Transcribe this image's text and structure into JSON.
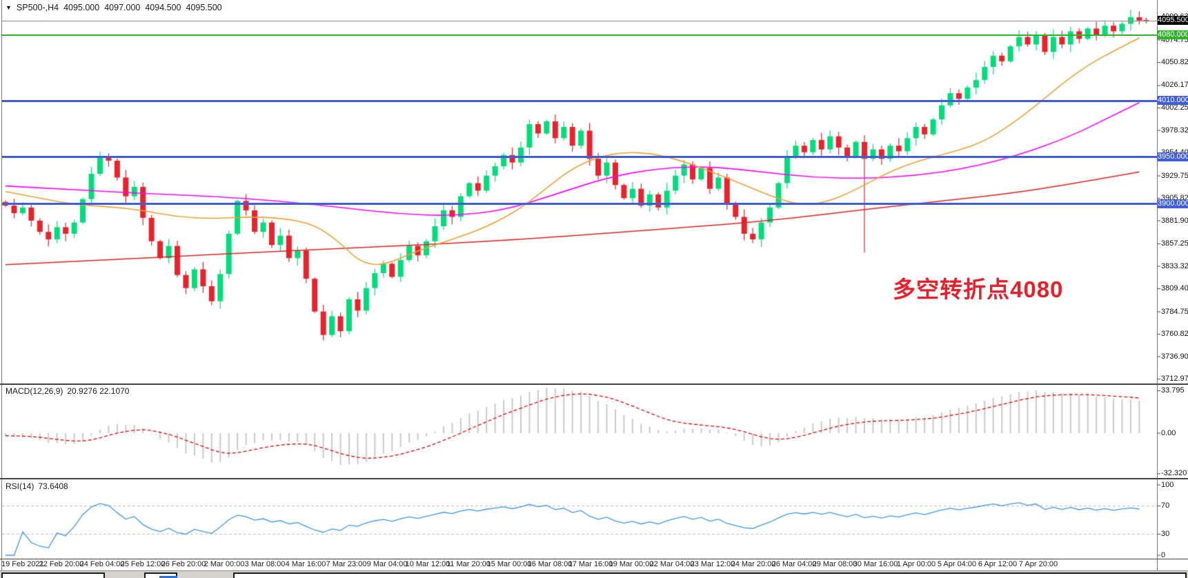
{
  "window": {
    "dropdown_icon": "▼",
    "symbol": "SP500-,H4",
    "open": "4095.000",
    "high": "4097.000",
    "low": "4094.500",
    "close": "4095.500"
  },
  "annotation": {
    "text": "多空转折点4080"
  },
  "price_axis": {
    "ticks": [
      "4099.635",
      "4074.750",
      "4050.825",
      "4026.175",
      "4002.250",
      "3978.325",
      "3954.400",
      "3929.750",
      "3905.825",
      "3881.900",
      "3857.250",
      "3833.325",
      "3809.400",
      "3784.750",
      "3760.825",
      "3736.900",
      "3712.975"
    ]
  },
  "price_lines": {
    "current": {
      "value": 4095.5,
      "label": "4095.500"
    },
    "levels": [
      {
        "value": 4080,
        "label": "4080.000",
        "type": "green"
      },
      {
        "value": 4010,
        "label": "4010.000",
        "type": "blue"
      },
      {
        "value": 3950,
        "label": "3950.000",
        "type": "blue"
      },
      {
        "value": 3900,
        "label": "3900.000",
        "type": "blue"
      }
    ]
  },
  "macd_panel": {
    "title": "MACD(12,26,9)",
    "values": "20.9276 22.1070",
    "ticks": [
      {
        "v": 33.795,
        "label": "33.795"
      },
      {
        "v": 0,
        "label": "0.00"
      },
      {
        "v": -32.3207,
        "label": "-32.3207"
      }
    ]
  },
  "rsi_panel": {
    "title": "RSI(14)",
    "value": "73.6408",
    "ticks": [
      {
        "v": 100,
        "label": "100"
      },
      {
        "v": 70,
        "label": "70"
      },
      {
        "v": 30,
        "label": "30"
      },
      {
        "v": 0,
        "label": "0"
      }
    ],
    "levels": [
      70,
      30
    ]
  },
  "time_axis": [
    "19 Feb 2021",
    "22 Feb 20:00",
    "24 Feb 04:00",
    "25 Feb 12:00",
    "26 Feb 20:00",
    "2 Mar 00:00",
    "3 Mar 08:00",
    "4 Mar 16:00",
    "7 Mar 23:00",
    "9 Mar 04:00",
    "10 Mar 12:00",
    "11 Mar 20:00",
    "15 Mar 00:00",
    "16 Mar 08:00",
    "17 Mar 16:00",
    "19 Mar 00:00",
    "22 Mar 04:00",
    "23 Mar 12:00",
    "24 Mar 20:00",
    "26 Mar 04:00",
    "29 Mar 08:00",
    "30 Mar 16:00",
    "1 Apr 00:00",
    "5 Apr 04:00",
    "6 Apr 12:00",
    "7 Apr 20:00"
  ],
  "colors": {
    "bull": "#00dd7a",
    "bear": "#e8232b",
    "ma_fast": "#ee9f33",
    "ma_mid": "#ff00ff",
    "ma_slow": "#e01f1f",
    "level_blue": "#3f5ed7",
    "level_green": "#2eb32a",
    "current_line": "#8d8d8d",
    "current_badge_bg": "#000000",
    "macd_hist": "#c9c9c9",
    "macd_signal": "#e80000",
    "rsi_line": "#3c95e8",
    "rsi_level": "#bcbcbc",
    "annotation": "#e62129",
    "axis_text": "#111111"
  },
  "chart_data": {
    "type": "candlestick",
    "symbol": "SP500-",
    "timeframe": "H4",
    "first_open": 3902,
    "closes": [
      3898,
      3890,
      3896,
      3882,
      3870,
      3862,
      3875,
      3868,
      3880,
      3905,
      3932,
      3950,
      3946,
      3928,
      3908,
      3918,
      3885,
      3860,
      3842,
      3855,
      3824,
      3810,
      3830,
      3812,
      3796,
      3825,
      3868,
      3903,
      3893,
      3870,
      3880,
      3856,
      3866,
      3842,
      3850,
      3820,
      3785,
      3760,
      3780,
      3764,
      3798,
      3786,
      3810,
      3826,
      3836,
      3822,
      3840,
      3855,
      3845,
      3860,
      3876,
      3893,
      3886,
      3908,
      3922,
      3914,
      3930,
      3940,
      3952,
      3944,
      3960,
      3985,
      3975,
      3988,
      3970,
      3982,
      3962,
      3978,
      3948,
      3930,
      3944,
      3920,
      3906,
      3916,
      3898,
      3910,
      3896,
      3914,
      3930,
      3942,
      3926,
      3938,
      3916,
      3928,
      3900,
      3886,
      3868,
      3862,
      3880,
      3896,
      3922,
      3950,
      3962,
      3955,
      3968,
      3958,
      3972,
      3960,
      3950,
      3966,
      3948,
      3958,
      3948,
      3962,
      3956,
      3970,
      3982,
      3974,
      3990,
      4005,
      4018,
      4012,
      4024,
      4032,
      4046,
      4058,
      4052,
      4068,
      4078,
      4070,
      4080,
      4062,
      4078,
      4070,
      4084,
      4076,
      4087,
      4080,
      4090,
      4084,
      4092,
      4099,
      4095.5
    ],
    "long_lower_wick": {
      "index": 100,
      "low": 3848
    },
    "ma_fast_orange": [
      [
        0,
        3913
      ],
      [
        4,
        3906
      ],
      [
        8,
        3899
      ],
      [
        12,
        3897
      ],
      [
        16,
        3893
      ],
      [
        20,
        3886
      ],
      [
        24,
        3884
      ],
      [
        28,
        3886
      ],
      [
        32,
        3885
      ],
      [
        36,
        3878
      ],
      [
        39,
        3858
      ],
      [
        41,
        3840
      ],
      [
        43,
        3834
      ],
      [
        45,
        3838
      ],
      [
        48,
        3850
      ],
      [
        52,
        3862
      ],
      [
        56,
        3875
      ],
      [
        60,
        3895
      ],
      [
        63,
        3917
      ],
      [
        66,
        3938
      ],
      [
        69,
        3950
      ],
      [
        72,
        3955
      ],
      [
        75,
        3954
      ],
      [
        78,
        3948
      ],
      [
        82,
        3935
      ],
      [
        86,
        3920
      ],
      [
        90,
        3905
      ],
      [
        93,
        3898
      ],
      [
        96,
        3903
      ],
      [
        99,
        3915
      ],
      [
        102,
        3930
      ],
      [
        105,
        3942
      ],
      [
        108,
        3950
      ],
      [
        111,
        3957
      ],
      [
        114,
        3967
      ],
      [
        117,
        3984
      ],
      [
        120,
        4005
      ],
      [
        123,
        4028
      ],
      [
        126,
        4048
      ],
      [
        129,
        4063
      ],
      [
        132,
        4077
      ]
    ],
    "ma_mid_magenta": [
      [
        0,
        3919
      ],
      [
        8,
        3915
      ],
      [
        16,
        3911
      ],
      [
        24,
        3908
      ],
      [
        32,
        3903
      ],
      [
        40,
        3895
      ],
      [
        46,
        3889
      ],
      [
        52,
        3887
      ],
      [
        58,
        3893
      ],
      [
        64,
        3910
      ],
      [
        70,
        3928
      ],
      [
        76,
        3938
      ],
      [
        82,
        3940
      ],
      [
        88,
        3934
      ],
      [
        94,
        3928
      ],
      [
        100,
        3927
      ],
      [
        106,
        3930
      ],
      [
        112,
        3938
      ],
      [
        118,
        3952
      ],
      [
        124,
        3972
      ],
      [
        128,
        3990
      ],
      [
        132,
        4008
      ]
    ],
    "ma_slow_red": [
      [
        0,
        3835
      ],
      [
        12,
        3840
      ],
      [
        24,
        3846
      ],
      [
        36,
        3851
      ],
      [
        48,
        3856
      ],
      [
        60,
        3862
      ],
      [
        72,
        3870
      ],
      [
        84,
        3878
      ],
      [
        92,
        3885
      ],
      [
        100,
        3894
      ],
      [
        108,
        3902
      ],
      [
        116,
        3910
      ],
      [
        122,
        3918
      ],
      [
        127,
        3926
      ],
      [
        132,
        3934
      ]
    ],
    "indicators": {
      "macd": {
        "fast": 12,
        "slow": 26,
        "signal": 9
      },
      "rsi": {
        "period": 14
      }
    }
  }
}
